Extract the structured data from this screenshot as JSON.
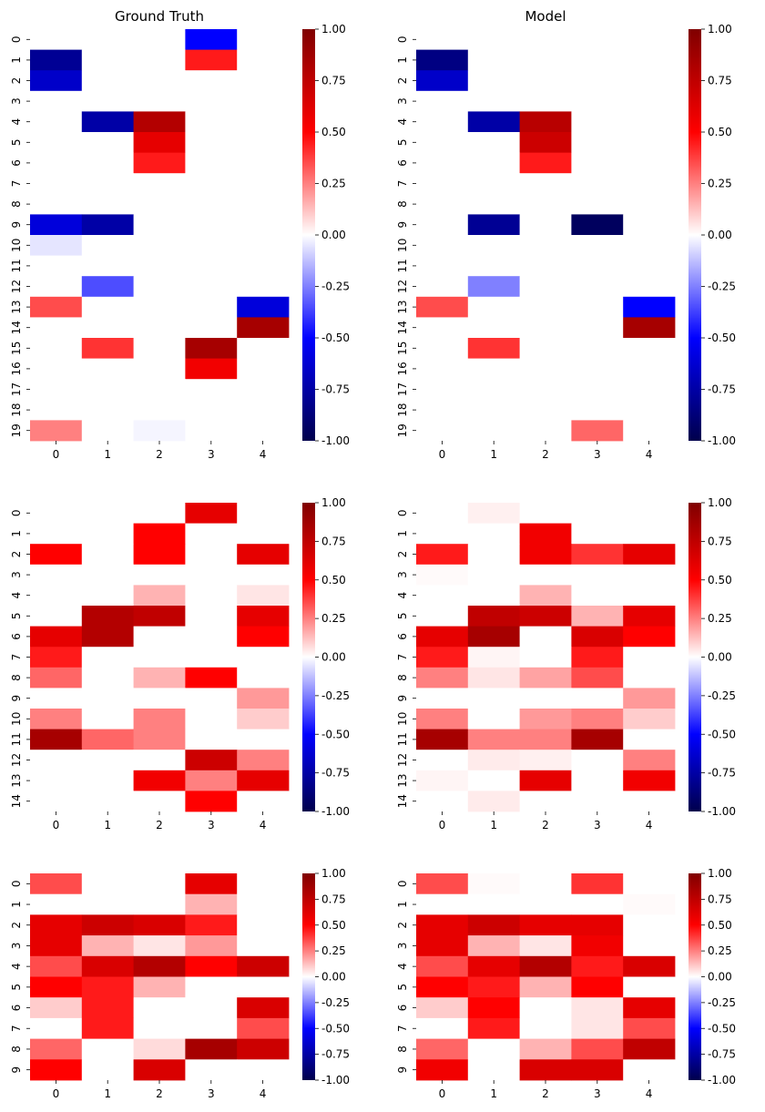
{
  "chart_data": [
    {
      "type": "heatmap",
      "title": "Ground Truth",
      "x_ticks": [
        "0",
        "1",
        "2",
        "3",
        "4"
      ],
      "y_ticks": [
        "0",
        "1",
        "2",
        "3",
        "4",
        "5",
        "6",
        "7",
        "8",
        "9",
        "10",
        "11",
        "12",
        "13",
        "14",
        "15",
        "16",
        "17",
        "18",
        "19"
      ],
      "colorbar_ticks": [
        "1.00",
        "0.75",
        "0.50",
        "0.25",
        "0.00",
        "-0.25",
        "-0.50",
        "-0.75",
        "-1.00"
      ],
      "vmin": -1,
      "vmax": 1,
      "colormap": "seismic",
      "values": [
        [
          0,
          0,
          0,
          -0.5,
          0
        ],
        [
          -0.8,
          0,
          0,
          0.45,
          0
        ],
        [
          -0.65,
          0,
          0,
          0,
          0
        ],
        [
          0,
          0,
          0,
          0,
          0
        ],
        [
          0,
          -0.75,
          0.8,
          0,
          0
        ],
        [
          0,
          0,
          0.6,
          0,
          0
        ],
        [
          0,
          0,
          0.45,
          0,
          0
        ],
        [
          0,
          0,
          0,
          0,
          0
        ],
        [
          0,
          0,
          0,
          0,
          0
        ],
        [
          -0.6,
          -0.75,
          0,
          0,
          0
        ],
        [
          -0.05,
          0,
          0,
          0,
          0
        ],
        [
          0,
          0,
          0,
          0,
          0
        ],
        [
          0,
          -0.35,
          0,
          0,
          0
        ],
        [
          0.35,
          0,
          0,
          0,
          -0.6
        ],
        [
          0,
          0,
          0,
          0,
          0.85
        ],
        [
          0,
          0.4,
          0,
          0.85,
          0
        ],
        [
          0,
          0,
          0,
          0.55,
          0
        ],
        [
          0,
          0,
          0,
          0,
          0
        ],
        [
          0,
          0,
          0,
          0,
          0
        ],
        [
          0.25,
          0,
          -0.02,
          0,
          0
        ]
      ]
    },
    {
      "type": "heatmap",
      "title": "Model",
      "x_ticks": [
        "0",
        "1",
        "2",
        "3",
        "4"
      ],
      "y_ticks": [
        "0",
        "1",
        "2",
        "3",
        "4",
        "5",
        "6",
        "7",
        "8",
        "9",
        "10",
        "11",
        "12",
        "13",
        "14",
        "15",
        "16",
        "17",
        "18",
        "19"
      ],
      "colorbar_ticks": [
        "1.00",
        "0.75",
        "0.50",
        "0.25",
        "0.00",
        "-0.25",
        "-0.50",
        "-0.75",
        "-1.00"
      ],
      "vmin": -1,
      "vmax": 1,
      "colormap": "seismic",
      "values": [
        [
          0,
          0,
          0,
          0,
          0
        ],
        [
          -0.85,
          0,
          0,
          0,
          0
        ],
        [
          -0.65,
          0,
          0,
          0,
          0
        ],
        [
          0,
          0,
          0,
          0,
          0
        ],
        [
          0,
          -0.75,
          0.78,
          0,
          0
        ],
        [
          0,
          0,
          0.7,
          0,
          0
        ],
        [
          0,
          0,
          0.45,
          0,
          0
        ],
        [
          0,
          0,
          0,
          0,
          0
        ],
        [
          0,
          0,
          0,
          0,
          0
        ],
        [
          0,
          -0.8,
          0,
          -0.95,
          0
        ],
        [
          0,
          0,
          0,
          0,
          0
        ],
        [
          0,
          0,
          0,
          0,
          0
        ],
        [
          0,
          -0.25,
          0,
          0,
          0
        ],
        [
          0.35,
          0,
          0,
          0,
          -0.5
        ],
        [
          0,
          0,
          0,
          0,
          0.85
        ],
        [
          0,
          0.4,
          0,
          0,
          0
        ],
        [
          0,
          0,
          0,
          0,
          0
        ],
        [
          0,
          0,
          0,
          0,
          0
        ],
        [
          0,
          0,
          0,
          0,
          0
        ],
        [
          0,
          0,
          0,
          0.3,
          0
        ]
      ]
    },
    {
      "type": "heatmap",
      "title": "",
      "x_ticks": [
        "0",
        "1",
        "2",
        "3",
        "4"
      ],
      "y_ticks": [
        "0",
        "1",
        "2",
        "3",
        "4",
        "5",
        "6",
        "7",
        "8",
        "9",
        "10",
        "11",
        "12",
        "13",
        "14"
      ],
      "colorbar_ticks": [
        "1.00",
        "0.75",
        "0.50",
        "0.25",
        "0.00",
        "-0.25",
        "-0.50",
        "-0.75",
        "-1.00"
      ],
      "vmin": -1,
      "vmax": 1,
      "colormap": "seismic",
      "values": [
        [
          0,
          0,
          0,
          0.6,
          0
        ],
        [
          0,
          0,
          0.5,
          0,
          0
        ],
        [
          0.5,
          0,
          0.5,
          0,
          0.6
        ],
        [
          0,
          0,
          0,
          0,
          0
        ],
        [
          0,
          0,
          0.15,
          0,
          0.05
        ],
        [
          0,
          0.8,
          0.75,
          0,
          0.6
        ],
        [
          0.6,
          0.8,
          0,
          0,
          0.5
        ],
        [
          0.45,
          0,
          0,
          0,
          0
        ],
        [
          0.3,
          0,
          0.15,
          0.5,
          0
        ],
        [
          0,
          0,
          0,
          0,
          0.2
        ],
        [
          0.25,
          0,
          0.25,
          0,
          0.1
        ],
        [
          0.85,
          0.3,
          0.25,
          0,
          0
        ],
        [
          0,
          0,
          0,
          0.7,
          0.25
        ],
        [
          0,
          0,
          0.55,
          0.25,
          0.6
        ],
        [
          0,
          0,
          0,
          0.5,
          0
        ]
      ]
    },
    {
      "type": "heatmap",
      "title": "",
      "x_ticks": [
        "0",
        "1",
        "2",
        "3",
        "4"
      ],
      "y_ticks": [
        "0",
        "1",
        "2",
        "3",
        "4",
        "5",
        "6",
        "7",
        "8",
        "9",
        "10",
        "11",
        "12",
        "13",
        "14"
      ],
      "colorbar_ticks": [
        "1.00",
        "0.75",
        "0.50",
        "0.25",
        "0.00",
        "-0.25",
        "-0.50",
        "-0.75",
        "-1.00"
      ],
      "vmin": -1,
      "vmax": 1,
      "colormap": "seismic",
      "values": [
        [
          0,
          0.03,
          0,
          0,
          0
        ],
        [
          0,
          0,
          0.55,
          0,
          0
        ],
        [
          0.45,
          0,
          0.55,
          0.4,
          0.6
        ],
        [
          0.01,
          0,
          0,
          0,
          0
        ],
        [
          0,
          0,
          0.15,
          0,
          0
        ],
        [
          0,
          0.75,
          0.7,
          0.15,
          0.6
        ],
        [
          0.6,
          0.85,
          0,
          0.65,
          0.5
        ],
        [
          0.45,
          0.02,
          0,
          0.45,
          0
        ],
        [
          0.25,
          0.05,
          0.18,
          0.35,
          0
        ],
        [
          0,
          0,
          0,
          0,
          0.2
        ],
        [
          0.25,
          0,
          0.2,
          0.25,
          0.1
        ],
        [
          0.85,
          0.25,
          0.25,
          0.85,
          0
        ],
        [
          0,
          0.04,
          0.03,
          0,
          0.25
        ],
        [
          0.02,
          0,
          0.6,
          0,
          0.55
        ],
        [
          0,
          0.04,
          0,
          0,
          0
        ]
      ]
    },
    {
      "type": "heatmap",
      "title": "",
      "x_ticks": [
        "0",
        "1",
        "2",
        "3",
        "4"
      ],
      "y_ticks": [
        "0",
        "1",
        "2",
        "3",
        "4",
        "5",
        "6",
        "7",
        "8",
        "9"
      ],
      "colorbar_ticks": [
        "1.00",
        "0.75",
        "0.50",
        "0.25",
        "0.00",
        "-0.25",
        "-0.50",
        "-0.75",
        "-1.00"
      ],
      "vmin": -1,
      "vmax": 1,
      "colormap": "seismic",
      "values": [
        [
          0.35,
          0,
          0,
          0.6,
          0
        ],
        [
          0,
          0,
          0,
          0.15,
          0
        ],
        [
          0.6,
          0.7,
          0.65,
          0.45,
          0
        ],
        [
          0.6,
          0.15,
          0.05,
          0.2,
          0
        ],
        [
          0.35,
          0.65,
          0.8,
          0.5,
          0.7
        ],
        [
          0.5,
          0.45,
          0.15,
          0,
          0
        ],
        [
          0.1,
          0.45,
          0,
          0,
          0.65
        ],
        [
          0,
          0.45,
          0,
          0,
          0.35
        ],
        [
          0.3,
          0,
          0.07,
          0.85,
          0.7
        ],
        [
          0.5,
          0,
          0.65,
          0,
          0
        ]
      ]
    },
    {
      "type": "heatmap",
      "title": "",
      "x_ticks": [
        "0",
        "1",
        "2",
        "3",
        "4"
      ],
      "y_ticks": [
        "0",
        "1",
        "2",
        "3",
        "4",
        "5",
        "6",
        "7",
        "8",
        "9"
      ],
      "colorbar_ticks": [
        "1.00",
        "0.75",
        "0.50",
        "0.25",
        "0.00",
        "-0.25",
        "-0.50",
        "-0.75",
        "-1.00"
      ],
      "vmin": -1,
      "vmax": 1,
      "colormap": "seismic",
      "values": [
        [
          0.35,
          0.01,
          0,
          0.4,
          0
        ],
        [
          0,
          0,
          0,
          0,
          0.01
        ],
        [
          0.6,
          0.7,
          0.6,
          0.6,
          0
        ],
        [
          0.6,
          0.15,
          0.05,
          0.55,
          0
        ],
        [
          0.35,
          0.6,
          0.8,
          0.45,
          0.65
        ],
        [
          0.5,
          0.45,
          0.15,
          0.5,
          0
        ],
        [
          0.1,
          0.5,
          0,
          0.05,
          0.6
        ],
        [
          0,
          0.45,
          0,
          0.05,
          0.35
        ],
        [
          0.3,
          0,
          0.15,
          0.35,
          0.75
        ],
        [
          0.55,
          0,
          0.65,
          0.65,
          0
        ]
      ]
    }
  ]
}
